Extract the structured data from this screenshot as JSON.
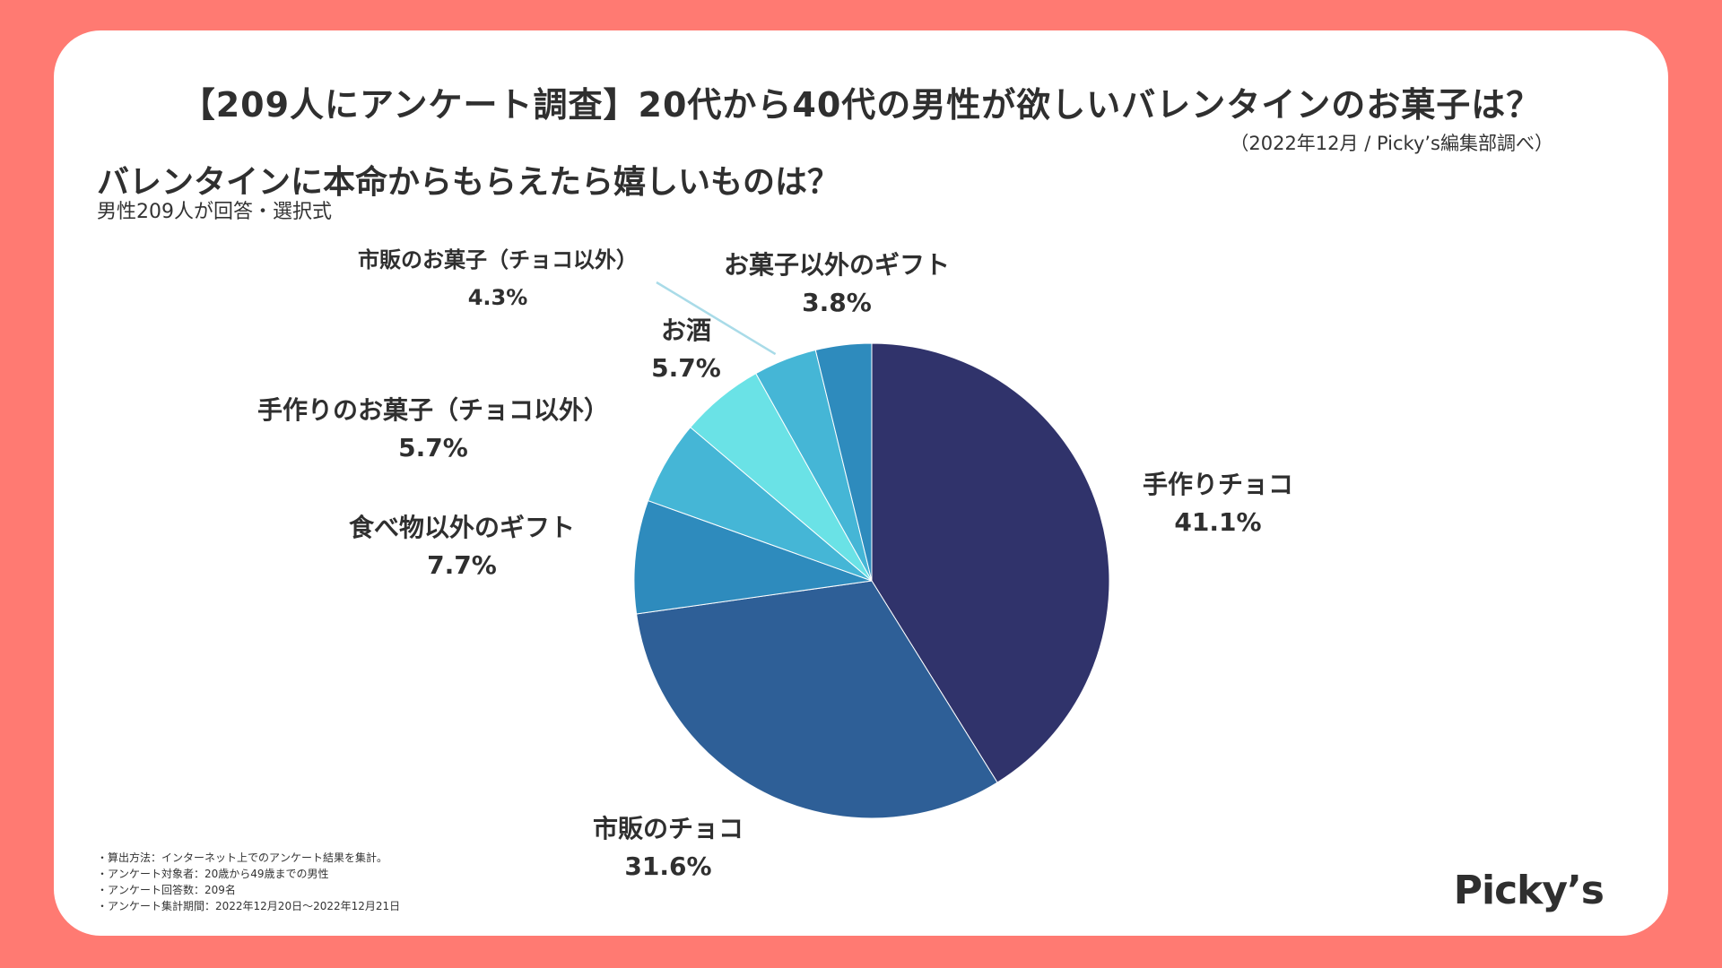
{
  "header": {
    "title": "【209人にアンケート調査】20代から40代の男性が欲しいバレンタインのお菓子は？",
    "source": "（2022年12月 / Picky’s編集部調べ）"
  },
  "question": {
    "title": "バレンタインに本命からもらえたら嬉しいものは？",
    "subtitle": "男性209人が回答・選択式"
  },
  "chart_data": {
    "type": "pie",
    "title": "バレンタインに本命からもらえたら嬉しいものは？",
    "start": "12 o'clock",
    "direction": "clockwise",
    "slices": [
      {
        "label": "手作りチョコ",
        "value": 41.1,
        "display": "41.1%",
        "color": "#30336b"
      },
      {
        "label": "市販のチョコ",
        "value": 31.6,
        "display": "31.6%",
        "color": "#2e5f97"
      },
      {
        "label": "食べ物以外のギフト",
        "value": 7.7,
        "display": "7.7%",
        "color": "#2e8bbd"
      },
      {
        "label": "手作りのお菓子（チョコ以外）",
        "value": 5.7,
        "display": "5.7%",
        "color": "#45b6d6"
      },
      {
        "label": "お酒",
        "value": 5.7,
        "display": "5.7%",
        "color": "#6ae2e6"
      },
      {
        "label": "市販のお菓子（チョコ以外）",
        "value": 4.3,
        "display": "4.3%",
        "color": "#45b6d6"
      },
      {
        "label": "お菓子以外のギフト",
        "value": 3.8,
        "display": "3.8%",
        "color": "#2e8bbd"
      }
    ]
  },
  "notes": [
    "・算出方法：インターネット上でのアンケート結果を集計。",
    "・アンケート対象者：20歳から49歳までの男性",
    "・アンケート回答数：209名",
    "・アンケート集計期間：2022年12月20日〜2022年12月21日"
  ],
  "brand": {
    "logo_text": "Picky’s",
    "background_color": "#ff7a72",
    "card_color": "#ffffff"
  }
}
